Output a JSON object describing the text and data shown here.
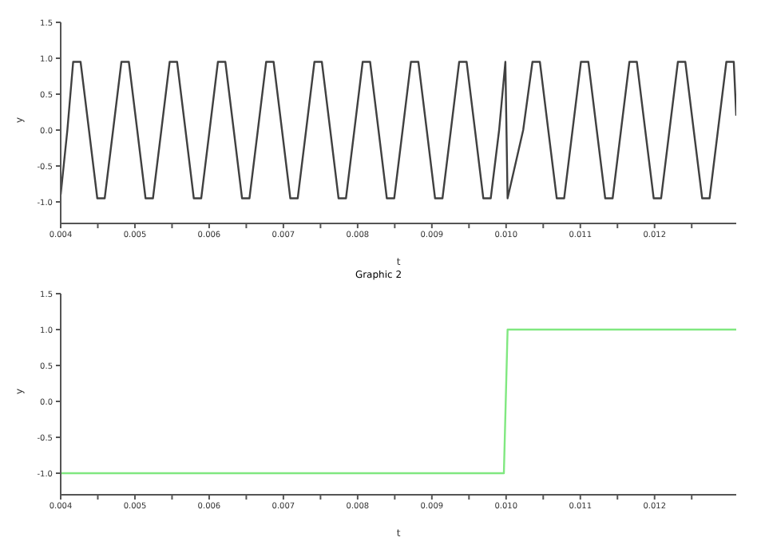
{
  "chart_data": [
    {
      "type": "line",
      "xlabel": "t",
      "ylabel": "y",
      "xlim": [
        0.004,
        0.0131
      ],
      "ylim": [
        -1.3,
        1.5
      ],
      "xticks": [
        0.004,
        {
          "value": 0.0045,
          "label": null
        },
        0.005,
        {
          "value": 0.0055,
          "label": null
        },
        0.006,
        {
          "value": 0.0065,
          "label": null
        },
        0.007,
        {
          "value": 0.0075,
          "label": null
        },
        0.008,
        {
          "value": 0.0085,
          "label": null
        },
        0.009,
        {
          "value": 0.0095,
          "label": null
        },
        {
          "value": 0.01,
          "label": "0.010"
        },
        {
          "value": 0.0105,
          "label": null
        },
        0.011,
        {
          "value": 0.0115,
          "label": null
        },
        0.012,
        {
          "value": 0.0125,
          "label": null
        }
      ],
      "yticks": [
        {
          "value": -1,
          "label": "-1.0"
        },
        -0.5,
        {
          "value": 0,
          "label": "0.0"
        },
        0.5,
        {
          "value": 1,
          "label": "1.0"
        },
        1.5
      ],
      "series": [
        {
          "color": "#404040",
          "x": [
            0.004,
            0.00409,
            0.004168,
            0.004268,
            0.004381,
            0.004493,
            0.004593,
            0.004706,
            0.004818,
            0.004918,
            0.005031,
            0.005143,
            0.005243,
            0.005356,
            0.005468,
            0.005568,
            0.005681,
            0.005793,
            0.005893,
            0.006006,
            0.006118,
            0.006218,
            0.006331,
            0.006443,
            0.006543,
            0.006656,
            0.006768,
            0.006868,
            0.006981,
            0.007093,
            0.007193,
            0.007306,
            0.007418,
            0.007518,
            0.007631,
            0.007743,
            0.007843,
            0.007956,
            0.008068,
            0.008168,
            0.008281,
            0.008393,
            0.008493,
            0.008606,
            0.008718,
            0.008818,
            0.008931,
            0.009043,
            0.009143,
            0.009256,
            0.009368,
            0.009468,
            0.009581,
            0.009693,
            0.009793,
            0.009906,
            0.00999,
            0.01002,
            0.01023,
            0.010355,
            0.010455,
            0.010568,
            0.010682,
            0.010782,
            0.010895,
            0.011008,
            0.011108,
            0.011221,
            0.011335,
            0.011435,
            0.011548,
            0.011661,
            0.011761,
            0.011874,
            0.011988,
            0.012088,
            0.012201,
            0.012314,
            0.012414,
            0.012527,
            0.012641,
            0.012741,
            0.012854,
            0.012967,
            0.013067,
            0.0131
          ],
          "values": [
            -0.9,
            0,
            0.95,
            0.95,
            0,
            -0.95,
            -0.95,
            0,
            0.95,
            0.95,
            0,
            -0.95,
            -0.95,
            0,
            0.95,
            0.95,
            0,
            -0.95,
            -0.95,
            0,
            0.95,
            0.95,
            0,
            -0.95,
            -0.95,
            0,
            0.95,
            0.95,
            0,
            -0.95,
            -0.95,
            0,
            0.95,
            0.95,
            0,
            -0.95,
            -0.95,
            0,
            0.95,
            0.95,
            0,
            -0.95,
            -0.95,
            0,
            0.95,
            0.95,
            0,
            -0.95,
            -0.95,
            0,
            0.95,
            0.95,
            0,
            -0.95,
            -0.95,
            0,
            0.95,
            -0.95,
            0,
            0.95,
            0.95,
            0,
            -0.95,
            -0.95,
            0,
            0.95,
            0.95,
            0,
            -0.95,
            -0.95,
            0,
            0.95,
            0.95,
            0,
            -0.95,
            -0.95,
            0,
            0.95,
            0.95,
            0,
            -0.95,
            -0.95,
            0,
            0.95,
            0.95,
            0.2
          ]
        }
      ]
    },
    {
      "type": "line",
      "title": "Graphic 2",
      "xlabel": "t",
      "ylabel": "y",
      "xlim": [
        0.004,
        0.0131
      ],
      "ylim": [
        -1.3,
        1.5
      ],
      "xticks": [
        0.004,
        {
          "value": 0.0045,
          "label": null
        },
        0.005,
        {
          "value": 0.0055,
          "label": null
        },
        0.006,
        {
          "value": 0.0065,
          "label": null
        },
        0.007,
        {
          "value": 0.0075,
          "label": null
        },
        0.008,
        {
          "value": 0.0085,
          "label": null
        },
        0.009,
        {
          "value": 0.0095,
          "label": null
        },
        {
          "value": 0.01,
          "label": "0.010"
        },
        {
          "value": 0.0105,
          "label": null
        },
        0.011,
        {
          "value": 0.0115,
          "label": null
        },
        0.012,
        {
          "value": 0.0125,
          "label": null
        }
      ],
      "yticks": [
        {
          "value": -1,
          "label": "-1.0"
        },
        -0.5,
        {
          "value": 0,
          "label": "0.0"
        },
        0.5,
        {
          "value": 1,
          "label": "1.0"
        },
        1.5
      ],
      "series": [
        {
          "color": "#80e880",
          "x": [
            0.004,
            0.00997,
            0.01002,
            0.0131
          ],
          "values": [
            -1,
            -1,
            1,
            1
          ]
        }
      ]
    }
  ]
}
